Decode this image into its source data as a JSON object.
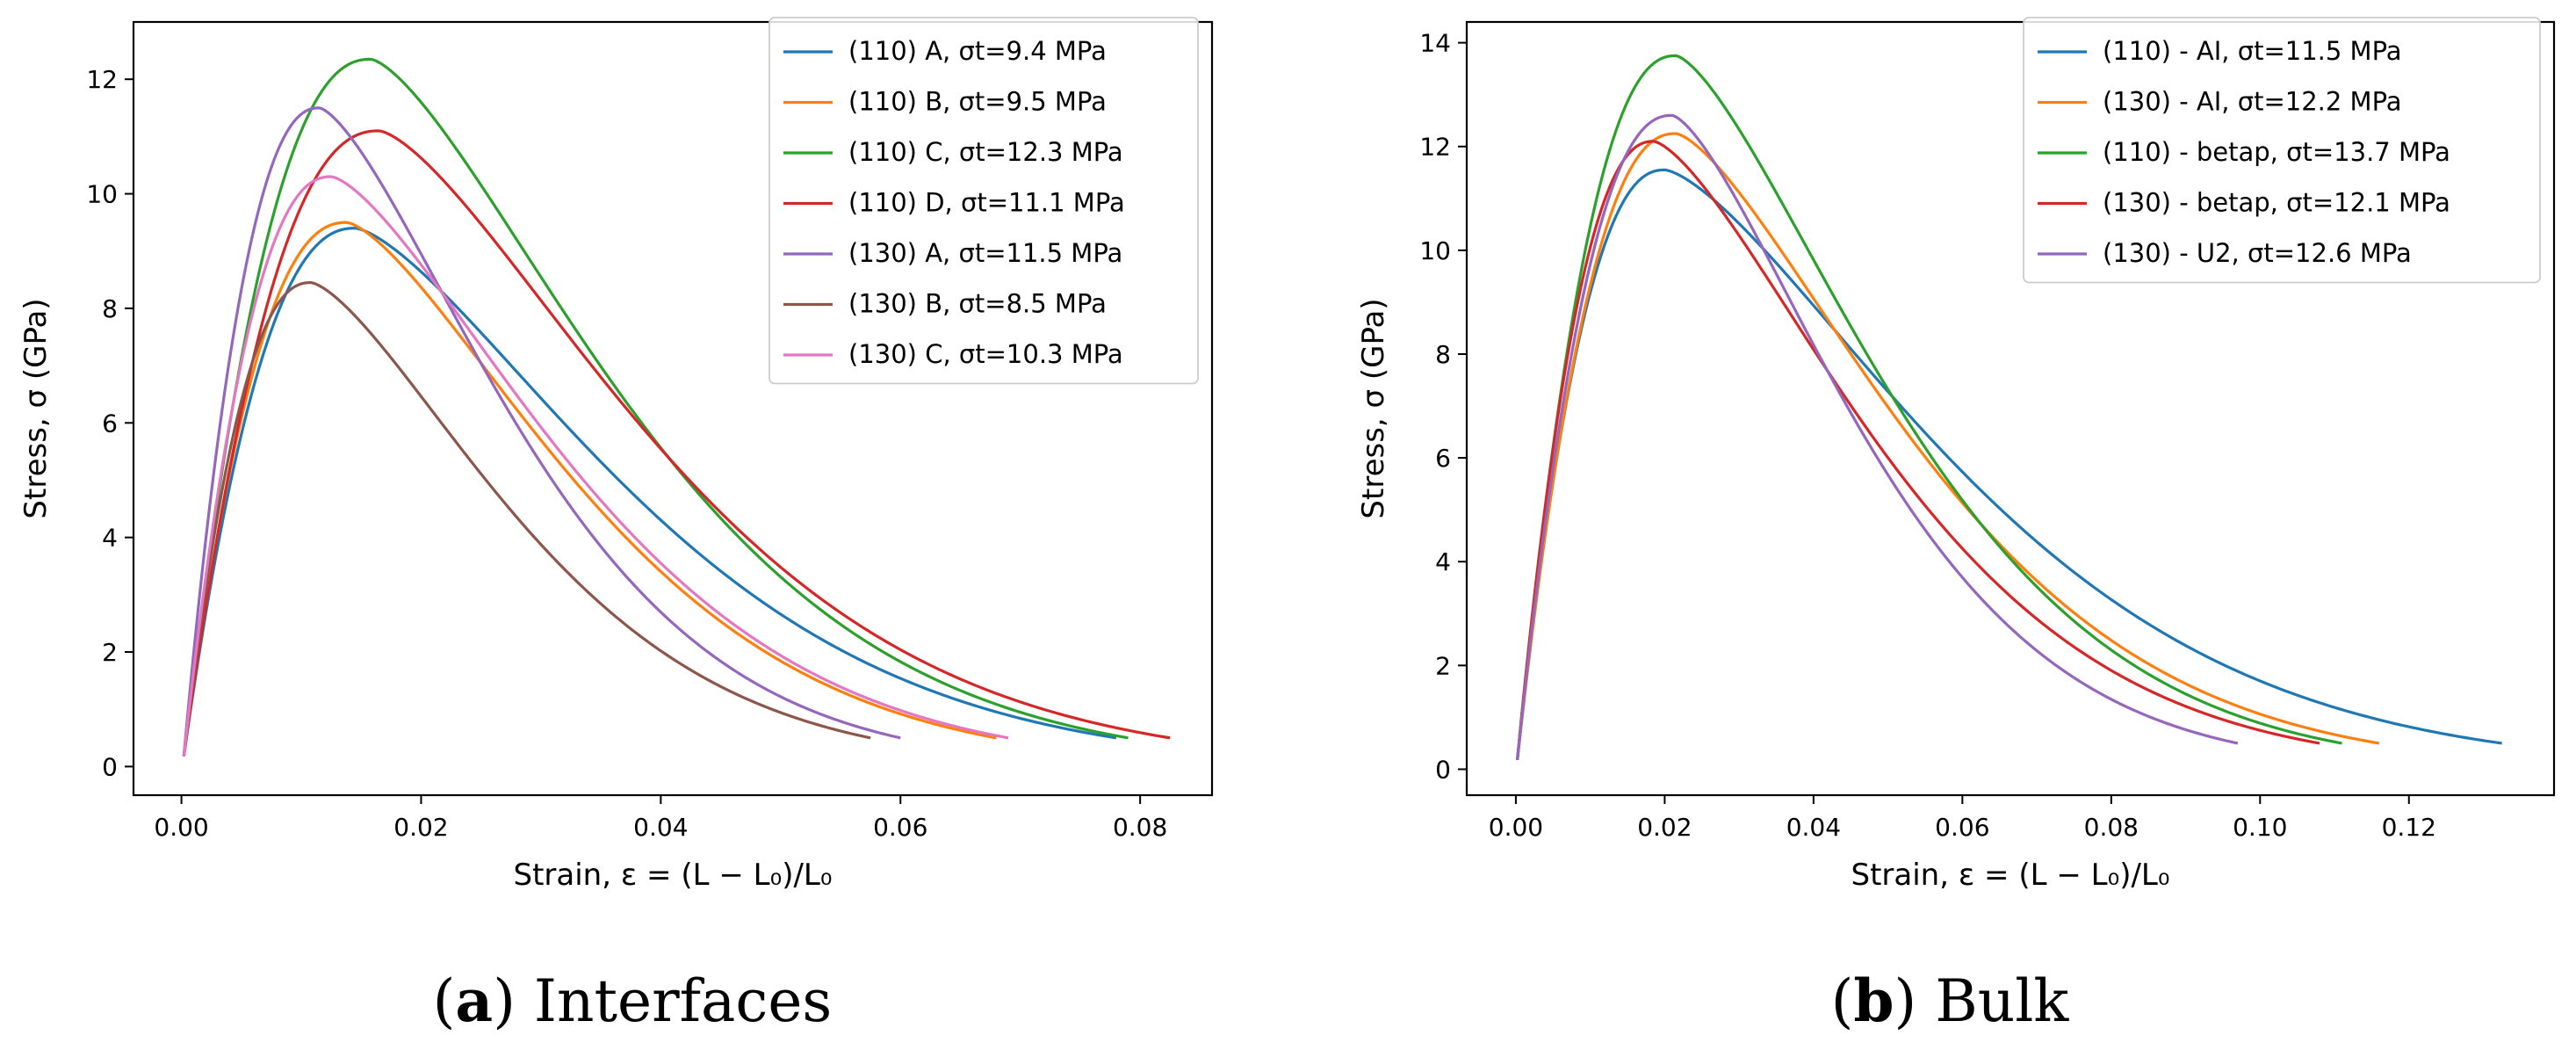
{
  "chart_data": [
    {
      "type": "line",
      "caption_letter": "a",
      "caption_title": "Interfaces",
      "xlabel": "Strain, ε = (L − L₀)/L₀",
      "ylabel": "Stress, σ (GPa)",
      "xlim": [
        -0.004,
        0.086
      ],
      "ylim": [
        -0.5,
        13.0
      ],
      "xticks": [
        0.0,
        0.02,
        0.04,
        0.06,
        0.08
      ],
      "xtick_labels": [
        "0.00",
        "0.02",
        "0.04",
        "0.06",
        "0.08"
      ],
      "yticks": [
        0,
        2,
        4,
        6,
        8,
        10,
        12
      ],
      "ytick_labels": [
        "0",
        "2",
        "4",
        "6",
        "8",
        "10",
        "12"
      ],
      "grid": false,
      "legend_position": "top-right",
      "series": [
        {
          "name": "(110) A, σt=9.4 MPa",
          "color": "#1f77b4",
          "peak_x": 0.0145,
          "peak_y": 9.4,
          "end_x": 0.078,
          "end_y": 0.5
        },
        {
          "name": "(110) B, σt=9.5 MPa",
          "color": "#ff7f0e",
          "peak_x": 0.0138,
          "peak_y": 9.5,
          "end_x": 0.068,
          "end_y": 0.5
        },
        {
          "name": "(110) C, σt=12.3 MPa",
          "color": "#2ca02c",
          "peak_x": 0.0158,
          "peak_y": 12.35,
          "end_x": 0.079,
          "end_y": 0.5
        },
        {
          "name": "(110) D, σt=11.1 MPa",
          "color": "#d62728",
          "peak_x": 0.0165,
          "peak_y": 11.1,
          "end_x": 0.0825,
          "end_y": 0.5
        },
        {
          "name": "(130) A, σt=11.5 MPa",
          "color": "#9467bd",
          "peak_x": 0.0115,
          "peak_y": 11.5,
          "end_x": 0.06,
          "end_y": 0.5
        },
        {
          "name": "(130) B, σt=8.5 MPa",
          "color": "#8c564b",
          "peak_x": 0.0108,
          "peak_y": 8.45,
          "end_x": 0.0575,
          "end_y": 0.5
        },
        {
          "name": "(130) C, σt=10.3 MPa",
          "color": "#e377c2",
          "peak_x": 0.0125,
          "peak_y": 10.3,
          "end_x": 0.069,
          "end_y": 0.5
        }
      ]
    },
    {
      "type": "line",
      "caption_letter": "b",
      "caption_title": "Bulk",
      "xlabel": "Strain, ε = (L − L₀)/L₀",
      "ylabel": "Stress, σ (GPa)",
      "xlim": [
        -0.0066,
        0.1395
      ],
      "ylim": [
        -0.5,
        14.4
      ],
      "xticks": [
        0.0,
        0.02,
        0.04,
        0.06,
        0.08,
        0.1,
        0.12
      ],
      "xtick_labels": [
        "0.00",
        "0.02",
        "0.04",
        "0.06",
        "0.08",
        "0.10",
        "0.12"
      ],
      "yticks": [
        0,
        2,
        4,
        6,
        8,
        10,
        12,
        14
      ],
      "ytick_labels": [
        "0",
        "2",
        "4",
        "6",
        "8",
        "10",
        "12",
        "14"
      ],
      "grid": false,
      "legend_position": "top-right",
      "series": [
        {
          "name": "(110) - AI, σt=11.5 MPa",
          "color": "#1f77b4",
          "peak_x": 0.02,
          "peak_y": 11.55,
          "end_x": 0.1325,
          "end_y": 0.5
        },
        {
          "name": "(130) - AI, σt=12.2 MPa",
          "color": "#ff7f0e",
          "peak_x": 0.0215,
          "peak_y": 12.25,
          "end_x": 0.116,
          "end_y": 0.5
        },
        {
          "name": "(110) - betap, σt=13.7 MPa",
          "color": "#2ca02c",
          "peak_x": 0.0215,
          "peak_y": 13.75,
          "end_x": 0.111,
          "end_y": 0.5
        },
        {
          "name": "(130) - betap, σt=12.1 MPa",
          "color": "#d62728",
          "peak_x": 0.0185,
          "peak_y": 12.1,
          "end_x": 0.108,
          "end_y": 0.5
        },
        {
          "name": "(130) - U2, σt=12.6 MPa",
          "color": "#9467bd",
          "peak_x": 0.021,
          "peak_y": 12.6,
          "end_x": 0.097,
          "end_y": 0.5
        }
      ]
    }
  ]
}
